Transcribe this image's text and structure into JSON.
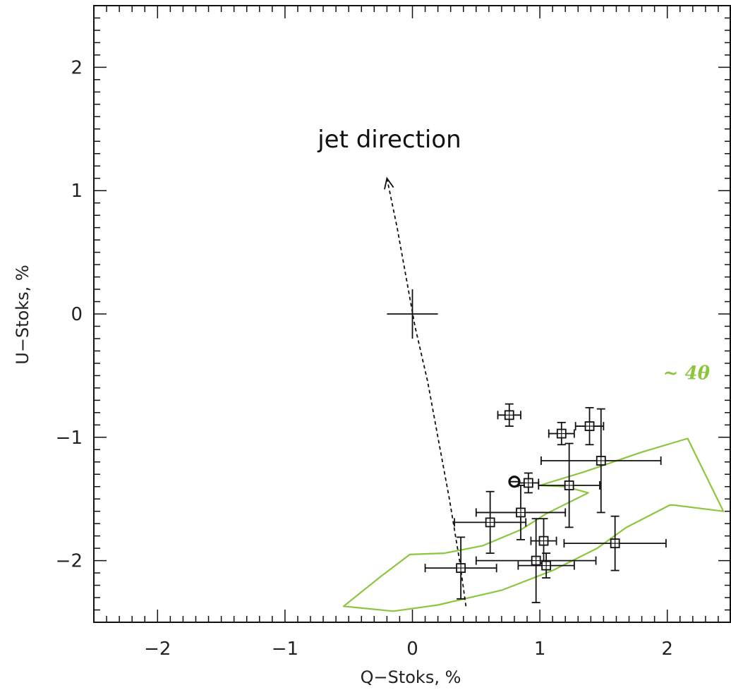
{
  "chart_data": {
    "type": "scatter",
    "title": "",
    "xlabel": "Q−Stoks, %",
    "ylabel": "U−Stoks, %",
    "xlim": [
      -2.5,
      2.5
    ],
    "ylim": [
      -2.5,
      2.5
    ],
    "xticks": [
      -2,
      -1,
      0,
      1,
      2
    ],
    "yticks": [
      -2,
      -1,
      0,
      1,
      2
    ],
    "xtick_labels": [
      "−2",
      "−1",
      "0",
      "1",
      "2"
    ],
    "ytick_labels": [
      "−2",
      "−1",
      "0",
      "1",
      "2"
    ],
    "grid": false,
    "legend": "none",
    "series": [
      {
        "marker": "square-with-errorbars",
        "points": [
          {
            "x": 0.76,
            "y": -0.82,
            "xerr": 0.09,
            "yerr": 0.09
          },
          {
            "x": 1.17,
            "y": -0.97,
            "xerr": 0.1,
            "yerr": 0.09
          },
          {
            "x": 1.39,
            "y": -0.91,
            "xerr": 0.11,
            "yerr": 0.15
          },
          {
            "x": 1.48,
            "y": -1.19,
            "xerr": 0.47,
            "yerr": 0.42
          },
          {
            "x": 0.91,
            "y": -1.37,
            "xerr": 0.08,
            "yerr": 0.08
          },
          {
            "x": 1.23,
            "y": -1.39,
            "xerr": 0.24,
            "yerr": 0.34
          },
          {
            "x": 0.85,
            "y": -1.61,
            "xerr": 0.35,
            "yerr": 0.22
          },
          {
            "x": 0.61,
            "y": -1.69,
            "xerr": 0.28,
            "yerr": 0.25
          },
          {
            "x": 1.03,
            "y": -1.84,
            "xerr": 0.1,
            "yerr": 0.18
          },
          {
            "x": 1.59,
            "y": -1.86,
            "xerr": 0.4,
            "yerr": 0.22
          },
          {
            "x": 0.97,
            "y": -2.0,
            "xerr": 0.47,
            "yerr": 0.34
          },
          {
            "x": 1.05,
            "y": -2.04,
            "xerr": 0.22,
            "yerr": 0.1
          },
          {
            "x": 0.38,
            "y": -2.06,
            "xerr": 0.28,
            "yerr": 0.25
          }
        ]
      },
      {
        "marker": "bold-circle",
        "points": [
          {
            "x": 0.8,
            "y": -1.36
          }
        ]
      },
      {
        "marker": "cross",
        "points": [
          {
            "x": 0.0,
            "y": 0.0,
            "xerr": 0.2,
            "yerr": 0.2
          }
        ]
      }
    ],
    "jet_arrow_path": [
      {
        "x": 0.42,
        "y": -2.37
      },
      {
        "x": 0.37,
        "y": -2.0
      },
      {
        "x": 0.29,
        "y": -1.5
      },
      {
        "x": 0.2,
        "y": -1.0
      },
      {
        "x": 0.12,
        "y": -0.55
      },
      {
        "x": 0.02,
        "y": -0.1
      },
      {
        "x": -0.05,
        "y": 0.3
      },
      {
        "x": -0.12,
        "y": 0.7
      },
      {
        "x": -0.2,
        "y": 1.1
      }
    ],
    "rotation_arrow_polygon": [
      {
        "x": -0.54,
        "y": -2.37
      },
      {
        "x": -0.25,
        "y": -2.13
      },
      {
        "x": -0.02,
        "y": -1.95
      },
      {
        "x": 0.25,
        "y": -1.94
      },
      {
        "x": 0.55,
        "y": -1.88
      },
      {
        "x": 0.85,
        "y": -1.75
      },
      {
        "x": 1.05,
        "y": -1.62
      },
      {
        "x": 1.38,
        "y": -1.45
      },
      {
        "x": 1.2,
        "y": -1.4
      },
      {
        "x": 1.0,
        "y": -1.39
      },
      {
        "x": 1.35,
        "y": -1.28
      },
      {
        "x": 1.8,
        "y": -1.12
      },
      {
        "x": 2.16,
        "y": -1.01
      },
      {
        "x": 2.44,
        "y": -1.6
      },
      {
        "x": 2.05,
        "y": -1.55
      },
      {
        "x": 2.02,
        "y": -1.55
      },
      {
        "x": 1.68,
        "y": -1.73
      },
      {
        "x": 1.45,
        "y": -1.9
      },
      {
        "x": 1.1,
        "y": -2.08
      },
      {
        "x": 0.7,
        "y": -2.24
      },
      {
        "x": 0.2,
        "y": -2.36
      },
      {
        "x": -0.15,
        "y": -2.41
      }
    ],
    "annotations": [
      {
        "text": "jet direction",
        "x": -0.18,
        "y": 1.35
      },
      {
        "text": "~ 4θ",
        "x": 2.15,
        "y": -0.53,
        "color": "#8cc63f"
      }
    ],
    "colors": {
      "data": "#111111",
      "axes": "#111111",
      "rotation_arrow": "#8cc63f",
      "annotation_accent": "#8cc63f"
    }
  }
}
